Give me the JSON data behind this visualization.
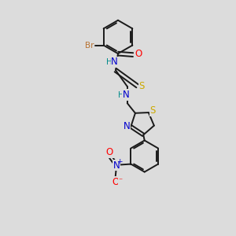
{
  "background_color": "#dcdcdc",
  "bond_color": "#1a1a1a",
  "br_color": "#b87333",
  "o_color": "#ff0000",
  "n_color": "#0000cd",
  "s_color": "#ccaa00",
  "h_color": "#008b8b",
  "fig_w": 3.0,
  "fig_h": 3.0,
  "dpi": 100,
  "xlim": [
    0,
    10
  ],
  "ylim": [
    0,
    10
  ]
}
